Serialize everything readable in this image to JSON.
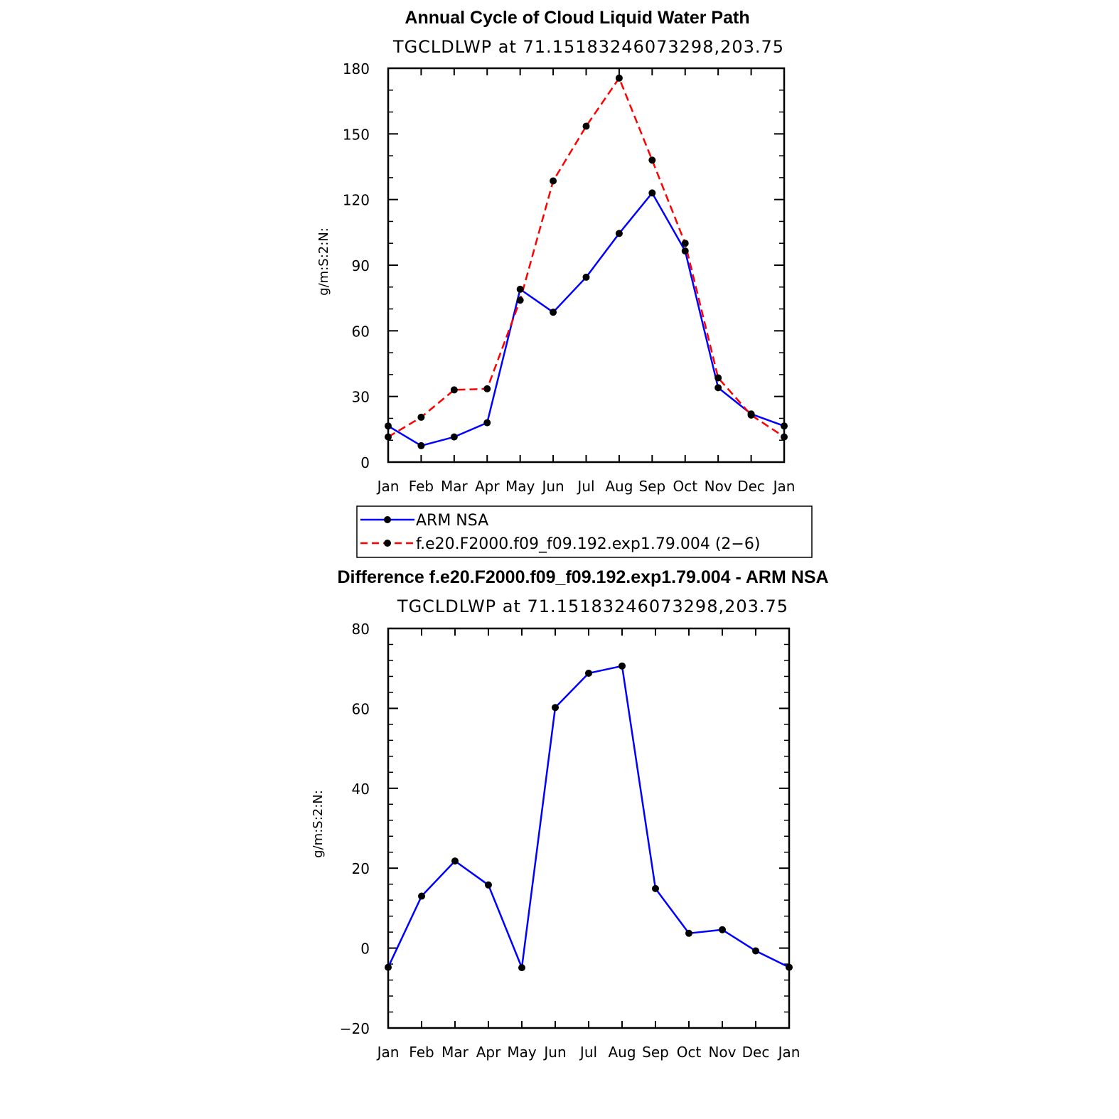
{
  "chart_data": [
    {
      "type": "line",
      "title": "Annual Cycle of Cloud Liquid Water Path",
      "subtitle": "TGCLDLWP  at  71.15183246073298,203.75",
      "xlabel": "",
      "ylabel": "g/m:S:2:N:",
      "categories": [
        "Jan",
        "Feb",
        "Mar",
        "Apr",
        "May",
        "Jun",
        "Jul",
        "Aug",
        "Sep",
        "Oct",
        "Nov",
        "Dec",
        "Jan"
      ],
      "ylim": [
        0,
        180
      ],
      "yticks": [
        "0",
        "30",
        "60",
        "90",
        "120",
        "150",
        "180"
      ],
      "series": [
        {
          "name": "ARM  NSA",
          "color": "#0000ff",
          "dash": "solid",
          "values": [
            16.5,
            7.5,
            11.5,
            18,
            79,
            68.5,
            84.5,
            104.5,
            123,
            96.5,
            34,
            22,
            16.5
          ]
        },
        {
          "name": "f.e20.F2000.f09_f09.192.exp1.79.004  (2−6)",
          "color": "#ff0000",
          "dash": "dashed",
          "values": [
            11.5,
            20.5,
            33,
            33.5,
            74,
            128.5,
            153.5,
            175.5,
            138,
            100,
            38.5,
            21.5,
            11.5
          ]
        }
      ],
      "legend": "below"
    },
    {
      "type": "line",
      "title": "Difference f.e20.F2000.f09_f09.192.exp1.79.004 - ARM NSA",
      "subtitle": "TGCLDLWP  at  71.15183246073298,203.75",
      "xlabel": "",
      "ylabel": "g/m:S:2:N:",
      "categories": [
        "Jan",
        "Feb",
        "Mar",
        "Apr",
        "May",
        "Jun",
        "Jul",
        "Aug",
        "Sep",
        "Oct",
        "Nov",
        "Dec",
        "Jan"
      ],
      "ylim": [
        -20,
        80
      ],
      "yticks": [
        "−20",
        "0",
        "20",
        "40",
        "60",
        "80"
      ],
      "series": [
        {
          "color": "#0000ff",
          "dash": "solid",
          "values": [
            -4.8,
            13,
            21.8,
            15.8,
            -4.9,
            60.2,
            68.8,
            70.6,
            14.9,
            3.7,
            4.6,
            -0.7,
            -4.8
          ]
        }
      ]
    }
  ]
}
